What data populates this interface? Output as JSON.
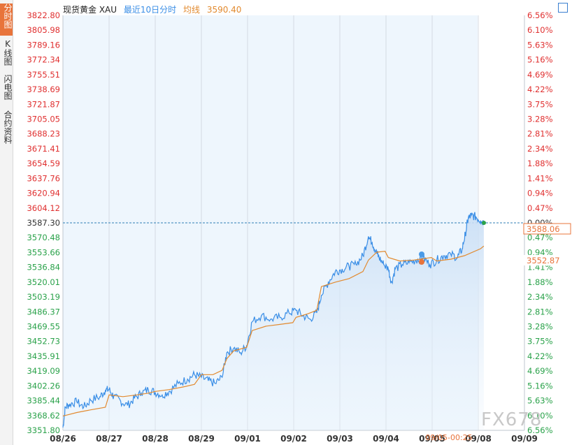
{
  "sidebar": {
    "tabs": [
      {
        "label": "分时图",
        "active": true
      },
      {
        "label": "K线图",
        "active": false
      },
      {
        "label": "闪电图",
        "active": false
      },
      {
        "label": "合约资料",
        "active": false
      }
    ]
  },
  "header": {
    "name": "现货黄金 XAU",
    "period": "最近10日分时",
    "avg_label": "均线",
    "avg_value": "3590.40"
  },
  "watermark": "FX678",
  "colors": {
    "price_line": "#3a8ee6",
    "avg_line": "#e28a2f",
    "up": "#e03030",
    "down": "#2aa24a",
    "ref_line": "#2f7fb5"
  },
  "chart_data": {
    "type": "line",
    "title": "",
    "y_ticks_left": [
      "3822.80",
      "3805.98",
      "3789.16",
      "3772.34",
      "3755.51",
      "3738.69",
      "3721.87",
      "3705.05",
      "3688.23",
      "3671.41",
      "3654.59",
      "3637.76",
      "3620.94",
      "3604.12",
      "3587.30",
      "3570.48",
      "3553.66",
      "3536.84",
      "3520.01",
      "3503.19",
      "3486.37",
      "3469.55",
      "3452.73",
      "3435.91",
      "3419.09",
      "3402.26",
      "3385.44",
      "3368.62",
      "3351.80"
    ],
    "y_ticks_right": [
      "6.56%",
      "6.10%",
      "5.63%",
      "5.16%",
      "4.69%",
      "4.22%",
      "3.75%",
      "3.28%",
      "2.81%",
      "2.34%",
      "1.88%",
      "1.41%",
      "0.94%",
      "0.47%",
      "0.00%",
      "0.47%",
      "0.94%",
      "1.41%",
      "1.88%",
      "2.34%",
      "2.81%",
      "3.28%",
      "3.75%",
      "4.22%",
      "4.69%",
      "5.16%",
      "5.63%",
      "6.10%",
      "6.56%"
    ],
    "x_ticks": [
      "08/26",
      "08/27",
      "08/28",
      "08/29",
      "09/01",
      "09/02",
      "09/03",
      "09/04",
      "09/05",
      "09/08",
      "09/09"
    ],
    "ylim": [
      3351.8,
      3822.8
    ],
    "reference_value": 3587.3,
    "last_price_label": "3588.06",
    "avg_price_label": "3552.87",
    "cursor_label": "09/05-00:25",
    "series": [
      {
        "name": "现货黄金 XAU",
        "points": [
          [
            0,
            3355
          ],
          [
            0.05,
            3378
          ],
          [
            0.15,
            3382
          ],
          [
            0.3,
            3384
          ],
          [
            0.45,
            3378
          ],
          [
            0.6,
            3386
          ],
          [
            0.8,
            3390
          ],
          [
            0.92,
            3397
          ],
          [
            1.0,
            3398
          ],
          [
            1.1,
            3390
          ],
          [
            1.25,
            3385
          ],
          [
            1.4,
            3380
          ],
          [
            1.55,
            3388
          ],
          [
            1.7,
            3394
          ],
          [
            1.85,
            3398
          ],
          [
            2.0,
            3395
          ],
          [
            2.15,
            3392
          ],
          [
            2.3,
            3396
          ],
          [
            2.5,
            3405
          ],
          [
            2.7,
            3410
          ],
          [
            2.85,
            3415
          ],
          [
            3.0,
            3412
          ],
          [
            3.15,
            3408
          ],
          [
            3.3,
            3405
          ],
          [
            3.45,
            3412
          ],
          [
            3.55,
            3440
          ],
          [
            3.7,
            3445
          ],
          [
            3.85,
            3440
          ],
          [
            3.98,
            3448
          ],
          [
            4.1,
            3475
          ],
          [
            4.3,
            3482
          ],
          [
            4.5,
            3478
          ],
          [
            4.7,
            3480
          ],
          [
            4.9,
            3485
          ],
          [
            5.05,
            3488
          ],
          [
            5.2,
            3482
          ],
          [
            5.35,
            3478
          ],
          [
            5.5,
            3485
          ],
          [
            5.6,
            3505
          ],
          [
            5.75,
            3520
          ],
          [
            5.9,
            3532
          ],
          [
            6.05,
            3535
          ],
          [
            6.2,
            3538
          ],
          [
            6.35,
            3540
          ],
          [
            6.5,
            3550
          ],
          [
            6.62,
            3572
          ],
          [
            6.7,
            3565
          ],
          [
            6.78,
            3555
          ],
          [
            6.85,
            3548
          ],
          [
            6.95,
            3540
          ],
          [
            7.05,
            3535
          ],
          [
            7.12,
            3520
          ],
          [
            7.2,
            3535
          ],
          [
            7.35,
            3540
          ],
          [
            7.5,
            3542
          ],
          [
            7.65,
            3545
          ],
          [
            7.8,
            3548
          ],
          [
            7.95,
            3540
          ],
          [
            8.1,
            3545
          ],
          [
            8.25,
            3550
          ],
          [
            8.4,
            3552
          ],
          [
            8.55,
            3548
          ],
          [
            8.65,
            3558
          ],
          [
            8.72,
            3575
          ],
          [
            8.78,
            3592
          ],
          [
            8.85,
            3596
          ],
          [
            8.95,
            3594
          ],
          [
            9.05,
            3590
          ],
          [
            9.12,
            3588
          ]
        ]
      },
      {
        "name": "均线",
        "points": [
          [
            0,
            3368
          ],
          [
            0.3,
            3372
          ],
          [
            0.6,
            3375
          ],
          [
            0.92,
            3378
          ],
          [
            1.0,
            3392
          ],
          [
            1.3,
            3390
          ],
          [
            1.6,
            3392
          ],
          [
            1.85,
            3394
          ],
          [
            2.0,
            3396
          ],
          [
            2.3,
            3398
          ],
          [
            2.6,
            3401
          ],
          [
            2.85,
            3404
          ],
          [
            3.0,
            3415
          ],
          [
            3.25,
            3415
          ],
          [
            3.45,
            3420
          ],
          [
            3.55,
            3433
          ],
          [
            3.7,
            3442
          ],
          [
            3.98,
            3446
          ],
          [
            4.1,
            3465
          ],
          [
            4.4,
            3470
          ],
          [
            4.7,
            3472
          ],
          [
            4.98,
            3474
          ],
          [
            5.05,
            3480
          ],
          [
            5.3,
            3484
          ],
          [
            5.5,
            3488
          ],
          [
            5.6,
            3515
          ],
          [
            5.9,
            3520
          ],
          [
            6.2,
            3524
          ],
          [
            6.5,
            3532
          ],
          [
            6.62,
            3545
          ],
          [
            6.8,
            3554
          ],
          [
            6.98,
            3555
          ],
          [
            7.05,
            3548
          ],
          [
            7.3,
            3544
          ],
          [
            7.6,
            3545
          ],
          [
            7.98,
            3548
          ],
          [
            8.1,
            3544
          ],
          [
            8.4,
            3546
          ],
          [
            8.7,
            3550
          ],
          [
            9.05,
            3558
          ],
          [
            9.12,
            3561
          ]
        ]
      }
    ],
    "grid": true
  }
}
